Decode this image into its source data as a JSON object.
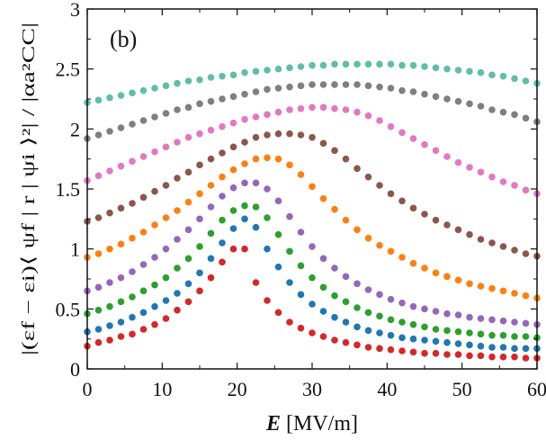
{
  "chart_data": {
    "type": "scatter",
    "panel_label": "(b)",
    "xlabel": {
      "symbol": "E",
      "unit": "[MV/m]"
    },
    "ylabel": "|(εf − εi)⟨ ψf | r | ψi ⟩²| / |αa²CC|",
    "xlim": [
      0,
      60
    ],
    "ylim": [
      0,
      3
    ],
    "xticks": [
      "0",
      "10",
      "20",
      "30",
      "40",
      "50",
      "60"
    ],
    "yticks": [
      "0",
      "0.5",
      "1",
      "1.5",
      "2",
      "2.5",
      "3"
    ],
    "grid": false,
    "x": [
      0,
      1.5,
      3,
      4.5,
      6,
      7.5,
      9,
      10.5,
      12,
      13.5,
      15,
      16.5,
      18,
      19.5,
      21,
      22.5,
      24,
      25.5,
      27,
      28.5,
      30,
      31.5,
      33,
      34.5,
      36,
      37.5,
      39,
      40.5,
      42,
      43.5,
      45,
      46.5,
      48,
      49.5,
      51,
      52.5,
      54,
      55.5,
      57,
      58.5,
      60
    ],
    "series": [
      {
        "name": "series-1",
        "color": "#d62728",
        "values": [
          0.19,
          0.22,
          0.24,
          0.27,
          0.29,
          0.33,
          0.37,
          0.42,
          0.49,
          0.56,
          0.65,
          0.76,
          0.89,
          1.0,
          1.0,
          0.72,
          0.57,
          0.47,
          0.39,
          0.34,
          0.3,
          0.27,
          0.24,
          0.22,
          0.2,
          0.18,
          0.17,
          0.16,
          0.15,
          0.14,
          0.13,
          0.13,
          0.12,
          0.12,
          0.11,
          0.11,
          0.1,
          0.1,
          0.1,
          0.09,
          0.09
        ]
      },
      {
        "name": "series-2",
        "color": "#1f77b4",
        "values": [
          0.31,
          0.33,
          0.36,
          0.39,
          0.43,
          0.47,
          0.52,
          0.57,
          0.63,
          0.71,
          0.8,
          0.92,
          1.05,
          1.17,
          1.25,
          1.18,
          1.0,
          0.85,
          0.72,
          0.62,
          0.54,
          0.48,
          0.43,
          0.39,
          0.35,
          0.32,
          0.3,
          0.28,
          0.26,
          0.25,
          0.24,
          0.23,
          0.22,
          0.21,
          0.2,
          0.19,
          0.18,
          0.18,
          0.17,
          0.17,
          0.17
        ]
      },
      {
        "name": "series-3",
        "color": "#2ca02c",
        "values": [
          0.46,
          0.49,
          0.52,
          0.56,
          0.6,
          0.65,
          0.7,
          0.76,
          0.84,
          0.92,
          1.02,
          1.13,
          1.24,
          1.32,
          1.36,
          1.35,
          1.26,
          1.12,
          0.98,
          0.86,
          0.76,
          0.68,
          0.61,
          0.56,
          0.51,
          0.47,
          0.44,
          0.41,
          0.39,
          0.37,
          0.35,
          0.33,
          0.32,
          0.31,
          0.3,
          0.29,
          0.28,
          0.28,
          0.27,
          0.27,
          0.26
        ]
      },
      {
        "name": "series-4",
        "color": "#9467bd",
        "values": [
          0.65,
          0.68,
          0.72,
          0.76,
          0.81,
          0.87,
          0.93,
          1.0,
          1.08,
          1.16,
          1.25,
          1.35,
          1.44,
          1.51,
          1.55,
          1.55,
          1.5,
          1.4,
          1.27,
          1.14,
          1.02,
          0.92,
          0.84,
          0.77,
          0.71,
          0.66,
          0.62,
          0.58,
          0.55,
          0.52,
          0.5,
          0.48,
          0.46,
          0.45,
          0.43,
          0.42,
          0.41,
          0.4,
          0.39,
          0.38,
          0.37
        ]
      },
      {
        "name": "series-5",
        "color": "#ff7f0e",
        "values": [
          0.93,
          0.96,
          1.0,
          1.04,
          1.09,
          1.14,
          1.2,
          1.26,
          1.32,
          1.39,
          1.46,
          1.53,
          1.6,
          1.66,
          1.71,
          1.75,
          1.76,
          1.75,
          1.7,
          1.62,
          1.52,
          1.42,
          1.33,
          1.24,
          1.16,
          1.09,
          1.03,
          0.98,
          0.93,
          0.88,
          0.84,
          0.8,
          0.77,
          0.74,
          0.71,
          0.69,
          0.67,
          0.65,
          0.63,
          0.61,
          0.59
        ]
      },
      {
        "name": "series-6",
        "color": "#8c564b",
        "values": [
          1.23,
          1.26,
          1.3,
          1.34,
          1.38,
          1.43,
          1.48,
          1.53,
          1.59,
          1.64,
          1.7,
          1.75,
          1.8,
          1.85,
          1.89,
          1.93,
          1.95,
          1.96,
          1.96,
          1.95,
          1.93,
          1.88,
          1.82,
          1.75,
          1.67,
          1.6,
          1.53,
          1.46,
          1.4,
          1.34,
          1.29,
          1.24,
          1.2,
          1.16,
          1.12,
          1.08,
          1.05,
          1.02,
          0.99,
          0.96,
          0.94
        ]
      },
      {
        "name": "series-7",
        "color": "#e377c2",
        "values": [
          1.57,
          1.61,
          1.65,
          1.69,
          1.73,
          1.77,
          1.81,
          1.85,
          1.89,
          1.93,
          1.96,
          1.99,
          2.02,
          2.05,
          2.08,
          2.1,
          2.12,
          2.14,
          2.16,
          2.17,
          2.18,
          2.18,
          2.17,
          2.16,
          2.14,
          2.11,
          2.07,
          2.02,
          1.97,
          1.92,
          1.87,
          1.82,
          1.77,
          1.72,
          1.68,
          1.64,
          1.6,
          1.56,
          1.53,
          1.49,
          1.46
        ]
      },
      {
        "name": "series-8",
        "color": "#7f7f7f",
        "values": [
          1.92,
          1.95,
          1.98,
          2.01,
          2.04,
          2.07,
          2.1,
          2.13,
          2.16,
          2.18,
          2.21,
          2.23,
          2.25,
          2.27,
          2.29,
          2.31,
          2.33,
          2.34,
          2.35,
          2.36,
          2.37,
          2.37,
          2.37,
          2.37,
          2.37,
          2.36,
          2.35,
          2.34,
          2.32,
          2.31,
          2.29,
          2.27,
          2.25,
          2.23,
          2.21,
          2.19,
          2.16,
          2.14,
          2.12,
          2.09,
          2.06
        ]
      },
      {
        "name": "series-9",
        "color": "#5fbea8",
        "values": [
          2.22,
          2.24,
          2.26,
          2.28,
          2.3,
          2.32,
          2.34,
          2.36,
          2.38,
          2.4,
          2.41,
          2.43,
          2.44,
          2.45,
          2.47,
          2.48,
          2.49,
          2.5,
          2.51,
          2.52,
          2.53,
          2.53,
          2.54,
          2.54,
          2.54,
          2.54,
          2.54,
          2.54,
          2.53,
          2.53,
          2.52,
          2.51,
          2.5,
          2.49,
          2.48,
          2.47,
          2.45,
          2.44,
          2.42,
          2.4,
          2.38
        ]
      }
    ]
  }
}
